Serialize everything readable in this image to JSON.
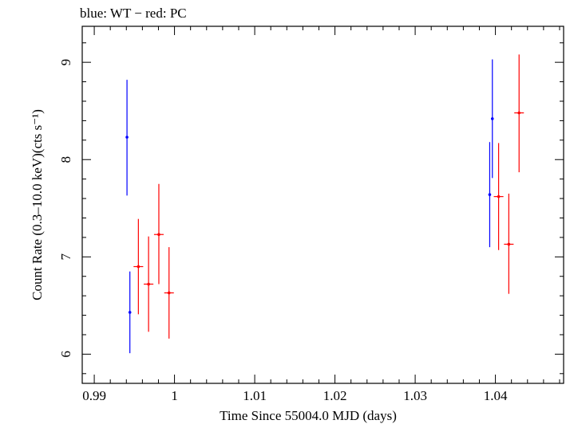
{
  "chart_data": {
    "type": "scatter",
    "title": "blue: WT − red: PC",
    "xlabel": "Time Since 55004.0 MJD (days)",
    "ylabel": "Count Rate (0.3–10.0 keV)(cts s⁻¹)",
    "xlim": [
      0.9885,
      1.0485
    ],
    "ylim": [
      5.7,
      9.37
    ],
    "x_ticks": [
      0.99,
      1.0,
      1.01,
      1.02,
      1.03,
      1.04
    ],
    "x_tick_labels": [
      "0.99",
      "1",
      "1.01",
      "1.02",
      "1.03",
      "1.04"
    ],
    "y_ticks": [
      6,
      7,
      8,
      9
    ],
    "y_tick_labels": [
      "6",
      "7",
      "8",
      "9"
    ],
    "grid": false,
    "legend": "none",
    "series": [
      {
        "mode": "WT",
        "color": "#0000ff",
        "points": [
          {
            "x": 0.99408,
            "y": 8.23,
            "xerr": 6e-05,
            "ylo": 7.63,
            "yhi": 8.82
          },
          {
            "x": 0.99444,
            "y": 6.43,
            "xerr": 6e-05,
            "ylo": 6.01,
            "yhi": 6.85
          },
          {
            "x": 1.03929,
            "y": 7.64,
            "xerr": 6e-05,
            "ylo": 7.1,
            "yhi": 8.18
          },
          {
            "x": 1.03962,
            "y": 8.42,
            "xerr": 6e-05,
            "ylo": 7.81,
            "yhi": 9.03
          }
        ]
      },
      {
        "mode": "PC",
        "color": "#ff0000",
        "points": [
          {
            "x": 0.9955,
            "y": 6.9,
            "xerr": 0.0006,
            "ylo": 6.41,
            "yhi": 7.39
          },
          {
            "x": 0.99677,
            "y": 6.72,
            "xerr": 0.0006,
            "ylo": 6.23,
            "yhi": 7.21
          },
          {
            "x": 0.99805,
            "y": 7.23,
            "xerr": 0.0006,
            "ylo": 6.72,
            "yhi": 7.75
          },
          {
            "x": 0.99932,
            "y": 6.63,
            "xerr": 0.0006,
            "ylo": 6.16,
            "yhi": 7.1
          },
          {
            "x": 1.0404,
            "y": 7.62,
            "xerr": 0.0006,
            "ylo": 7.07,
            "yhi": 8.17
          },
          {
            "x": 1.04167,
            "y": 7.13,
            "xerr": 0.0006,
            "ylo": 6.62,
            "yhi": 7.65
          },
          {
            "x": 1.04295,
            "y": 8.48,
            "xerr": 0.0006,
            "ylo": 7.87,
            "yhi": 9.08
          }
        ]
      }
    ]
  }
}
